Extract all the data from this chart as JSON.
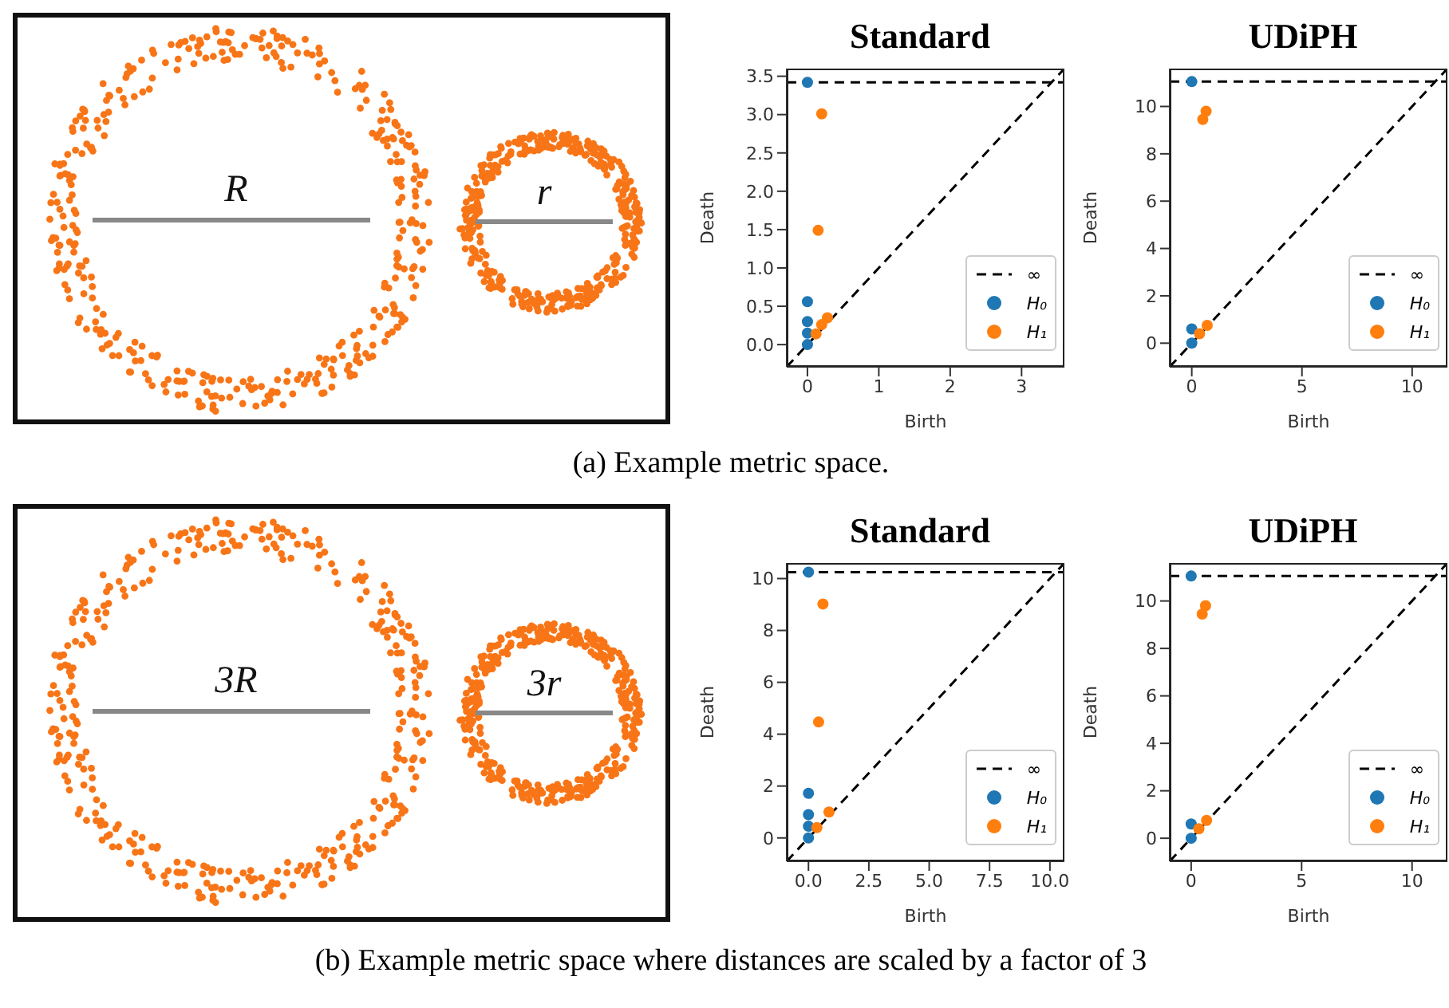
{
  "chart_data": [
    {
      "type": "other",
      "annotations": [
        "R",
        "r",
        "(a) Example metric space."
      ]
    },
    {
      "type": "scatter",
      "title": "Standard",
      "xlabel": "Birth",
      "ylabel": "Death",
      "xlim": [
        -0.29,
        3.6
      ],
      "ylim": [
        -0.29,
        3.6
      ],
      "xticks": [
        0,
        1,
        2,
        3
      ],
      "yticks": [
        {
          "value": 0,
          "label": "0.0"
        },
        {
          "value": 0.5,
          "label": "0.5"
        },
        {
          "value": 1,
          "label": "1.0"
        },
        {
          "value": 1.5,
          "label": "1.5"
        },
        {
          "value": 2,
          "label": "2.0"
        },
        {
          "value": 2.5,
          "label": "2.5"
        },
        {
          "value": 3,
          "label": "3.0"
        },
        {
          "value": 3.5,
          "label": "3.5"
        }
      ],
      "legend": "bottom right",
      "ref_lines": [
        {
          "axis": "y",
          "value": 3.42,
          "label": "∞",
          "color": "#000000",
          "line_style": "dashed"
        }
      ],
      "series": [
        {
          "type": "line",
          "color": "#000000",
          "line_style": "dashed",
          "x": [
            -0.29,
            3.6
          ],
          "values": [
            -0.29,
            3.6
          ]
        },
        {
          "name": "H₀",
          "color": "#1f77b4",
          "marker": "circle",
          "x": [
            0,
            0,
            0,
            0,
            0
          ],
          "values": [
            3.42,
            0.56,
            0.3,
            0.15,
            0
          ]
        },
        {
          "name": "H₁",
          "color": "#ff7f0e",
          "marker": "circle",
          "x": [
            0.2,
            0.15,
            0.12,
            0.2,
            0.28
          ],
          "values": [
            3.01,
            1.49,
            0.14,
            0.26,
            0.35
          ]
        }
      ]
    },
    {
      "type": "scatter",
      "title": "UDiPH",
      "xlabel": "Birth",
      "ylabel": "Death",
      "xlim": [
        -1,
        11.6
      ],
      "ylim": [
        -1,
        11.6
      ],
      "xticks": [
        0,
        5,
        10
      ],
      "yticks": [
        0,
        2,
        4,
        6,
        8,
        10
      ],
      "legend": "bottom right",
      "ref_lines": [
        {
          "axis": "y",
          "value": 11.05,
          "label": "∞",
          "color": "#000000",
          "line_style": "dashed"
        }
      ],
      "series": [
        {
          "type": "line",
          "color": "#000000",
          "line_style": "dashed",
          "x": [
            -1,
            11.6
          ],
          "values": [
            -1,
            11.6
          ]
        },
        {
          "name": "H₀",
          "color": "#1f77b4",
          "marker": "circle",
          "x": [
            0,
            0,
            0
          ],
          "values": [
            11.05,
            0.6,
            0
          ]
        },
        {
          "name": "H₁",
          "color": "#ff7f0e",
          "marker": "circle",
          "x": [
            0.5,
            0.65,
            0.35,
            0.7
          ],
          "values": [
            9.45,
            9.8,
            0.4,
            0.75
          ]
        }
      ]
    },
    {
      "type": "other",
      "annotations": [
        "3R",
        "3r",
        "(b) Example metric space where distances are scaled by a factor of 3"
      ]
    },
    {
      "type": "scatter",
      "title": "Standard",
      "xlabel": "Birth",
      "ylabel": "Death",
      "xlim": [
        -0.9,
        10.6
      ],
      "ylim": [
        -0.9,
        10.6
      ],
      "xticks": [
        {
          "value": 0,
          "label": "0.0"
        },
        {
          "value": 2.5,
          "label": "2.5"
        },
        {
          "value": 5,
          "label": "5.0"
        },
        {
          "value": 7.5,
          "label": "7.5"
        },
        {
          "value": 10,
          "label": "10.0"
        }
      ],
      "yticks": [
        0,
        2,
        4,
        6,
        8,
        10
      ],
      "legend": "bottom right",
      "ref_lines": [
        {
          "axis": "y",
          "value": 10.25,
          "label": "∞",
          "color": "#000000",
          "line_style": "dashed"
        }
      ],
      "series": [
        {
          "type": "line",
          "color": "#000000",
          "line_style": "dashed",
          "x": [
            -0.9,
            10.6
          ],
          "values": [
            -0.9,
            10.6
          ]
        },
        {
          "name": "H₀",
          "color": "#1f77b4",
          "marker": "circle",
          "x": [
            0,
            0,
            0,
            0,
            0
          ],
          "values": [
            10.25,
            1.72,
            0.9,
            0.45,
            0
          ]
        },
        {
          "name": "H₁",
          "color": "#ff7f0e",
          "marker": "circle",
          "x": [
            0.6,
            0.42,
            0.35,
            0.85
          ],
          "values": [
            9.02,
            4.47,
            0.4,
            1.0
          ]
        }
      ]
    },
    {
      "type": "scatter",
      "title": "UDiPH",
      "xlabel": "Birth",
      "ylabel": "Death",
      "xlim": [
        -0.97,
        11.6
      ],
      "ylim": [
        -0.97,
        11.6
      ],
      "xticks": [
        0,
        5,
        10
      ],
      "yticks": [
        0,
        2,
        4,
        6,
        8,
        10
      ],
      "legend": "bottom right",
      "ref_lines": [
        {
          "axis": "y",
          "value": 11.05,
          "label": "∞",
          "color": "#000000",
          "line_style": "dashed"
        }
      ],
      "series": [
        {
          "type": "line",
          "color": "#000000",
          "line_style": "dashed",
          "x": [
            -0.97,
            11.6
          ],
          "values": [
            -0.97,
            11.6
          ]
        },
        {
          "name": "H₀",
          "color": "#1f77b4",
          "marker": "circle",
          "x": [
            0,
            0,
            0
          ],
          "values": [
            11.05,
            0.6,
            0
          ]
        },
        {
          "name": "H₁",
          "color": "#ff7f0e",
          "marker": "circle",
          "x": [
            0.5,
            0.65,
            0.35,
            0.7
          ],
          "values": [
            9.45,
            9.8,
            0.4,
            0.75
          ]
        }
      ]
    }
  ]
}
